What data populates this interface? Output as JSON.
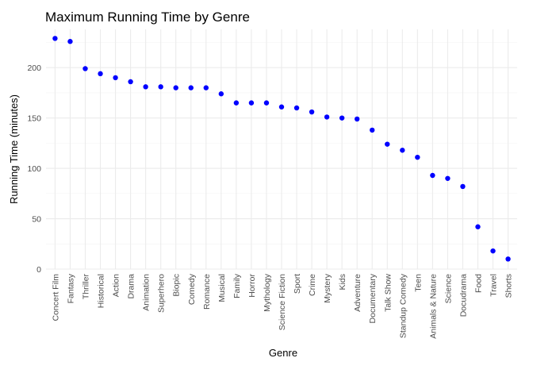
{
  "chart_data": {
    "type": "scatter",
    "title": "Maximum Running Time by Genre",
    "xlabel": "Genre",
    "ylabel": "Running Time (minutes)",
    "categories": [
      "Concert Film",
      "Fantasy",
      "Thriller",
      "Historical",
      "Action",
      "Drama",
      "Animation",
      "Superhero",
      "Biopic",
      "Comedy",
      "Romance",
      "Musical",
      "Family",
      "Horror",
      "Mythology",
      "Science Fiction",
      "Sport",
      "Crime",
      "Mystery",
      "Kids",
      "Adventure",
      "Documentary",
      "Talk Show",
      "Standup Comedy",
      "Teen",
      "Animals & Nature",
      "Science",
      "Docudrama",
      "Food",
      "Travel",
      "Shorts"
    ],
    "values": [
      229,
      226,
      199,
      194,
      190,
      186,
      181,
      181,
      180,
      180,
      180,
      174,
      165,
      165,
      165,
      161,
      160,
      156,
      151,
      150,
      149,
      138,
      124,
      118,
      111,
      93,
      90,
      82,
      42,
      18,
      10
    ],
    "ylim": [
      0,
      238
    ],
    "yticks": [
      0,
      50,
      100,
      150,
      200
    ],
    "grid": true,
    "point_color": "#0000ff",
    "legend": "none"
  }
}
